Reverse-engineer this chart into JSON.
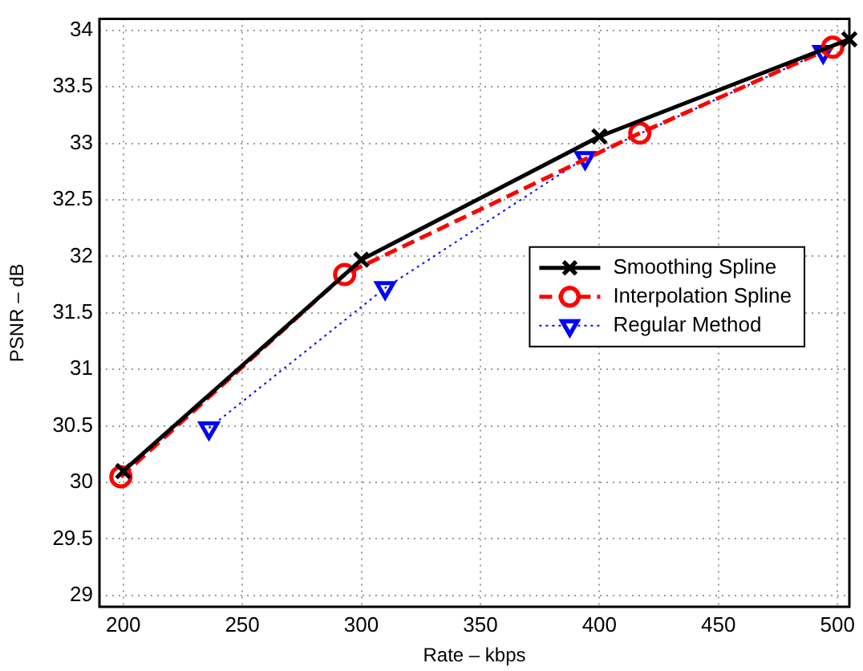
{
  "chart_data": {
    "type": "line",
    "xlabel": "Rate – kbps",
    "ylabel": "PSNR – dB",
    "xlim": [
      190,
      505
    ],
    "xticks": [
      200,
      250,
      300,
      350,
      400,
      450,
      500
    ],
    "ylim": [
      28.9,
      34.1
    ],
    "yticks": [
      29,
      29.5,
      30,
      30.5,
      31,
      31.5,
      32,
      32.5,
      33,
      33.5,
      34
    ],
    "grid": true,
    "legend": "right",
    "series": [
      {
        "name": "Smoothing Spline",
        "color": "#000000",
        "marker": "cross",
        "line_style": "solid",
        "x": [
          200,
          300,
          400,
          505
        ],
        "values": [
          30.1,
          31.97,
          33.06,
          33.92
        ]
      },
      {
        "name": "Interpolation Spline",
        "color": "#ff0000",
        "marker": "circle",
        "line_style": "dashed",
        "x": [
          199,
          293,
          417,
          498
        ],
        "values": [
          30.05,
          31.84,
          33.09,
          33.85
        ]
      },
      {
        "name": "Regular Method",
        "color": "#0000ff",
        "marker": "triangle",
        "line_style": "dotted",
        "x": [
          236,
          310,
          394,
          494
        ],
        "values": [
          30.48,
          31.72,
          32.87,
          33.81
        ]
      }
    ]
  }
}
